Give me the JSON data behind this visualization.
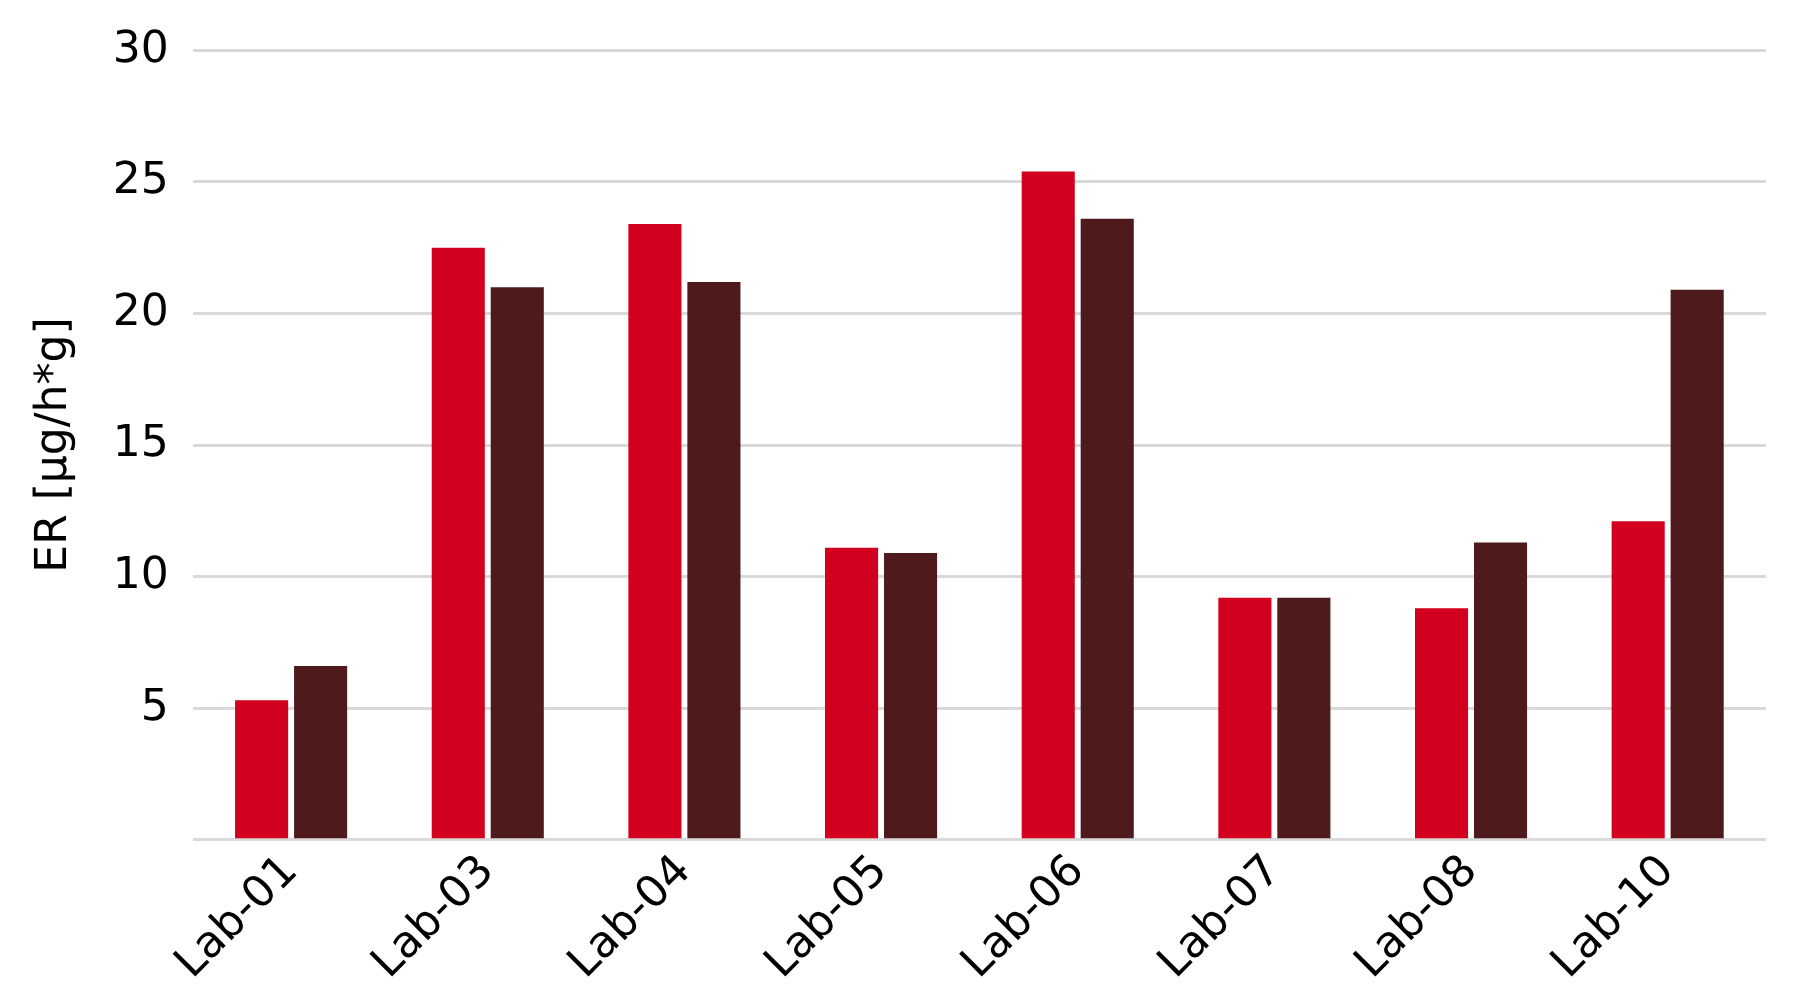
{
  "chart_data": {
    "type": "bar",
    "ylabel": "ER [µg/h*g]",
    "categories": [
      "Lab-01",
      "Lab-03",
      "Lab-04",
      "Lab-05",
      "Lab-06",
      "Lab-07",
      "Lab-08",
      "Lab-10"
    ],
    "series": [
      {
        "color": "#d2001e",
        "values": [
          5.3,
          22.5,
          23.4,
          11.1,
          25.4,
          9.2,
          8.8,
          12.1
        ]
      },
      {
        "color": "#4f1a1c",
        "values": [
          6.6,
          21.0,
          21.2,
          10.9,
          23.6,
          9.2,
          11.3,
          20.9
        ]
      }
    ],
    "ylim": [
      0,
      30
    ],
    "yticks": [
      {
        "value": 0,
        "label": null
      },
      5,
      10,
      15,
      20,
      25,
      30
    ],
    "grid": "y",
    "legend": false
  }
}
